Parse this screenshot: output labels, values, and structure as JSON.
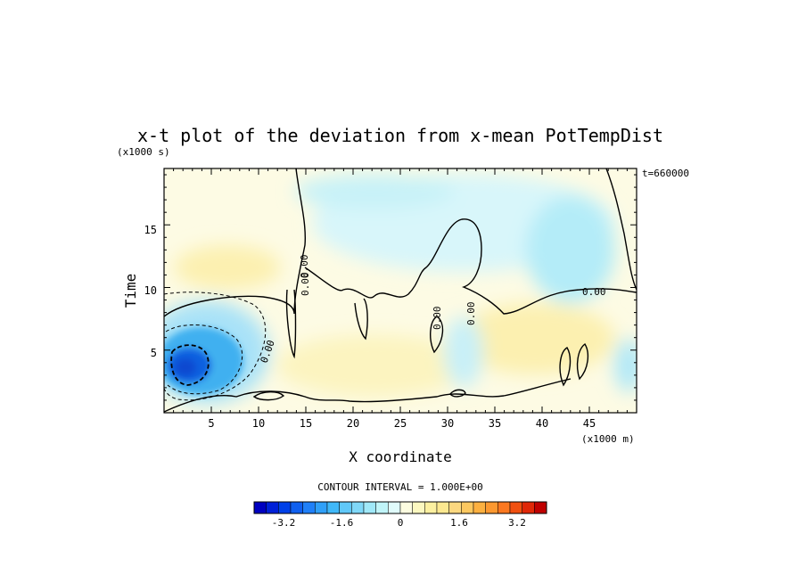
{
  "chart_data": {
    "type": "heatmap",
    "title": "x-t plot of the deviation from x-mean PotTempDist",
    "xlabel": "X coordinate",
    "ylabel": "Time",
    "x_units": "(x1000 m)",
    "y_units": "(x1000 s)",
    "time_stamp": "t=660000",
    "xlim": [
      0,
      50
    ],
    "ylim": [
      0,
      19.5
    ],
    "x_ticks": [
      "5",
      "10",
      "15",
      "20",
      "25",
      "30",
      "35",
      "40",
      "45"
    ],
    "y_ticks": [
      "5",
      "10",
      "15"
    ],
    "contour_interval": "CONTOUR INTERVAL = 1.000E+00",
    "contour_labels": [
      "0.00",
      "0.00",
      "0.00",
      "0.00",
      "0.00",
      "0.00"
    ],
    "colorbar": {
      "range": [
        -4,
        4
      ],
      "ticks": [
        "-3.2",
        "-1.6",
        "0",
        "1.6",
        "3.2"
      ],
      "colors": [
        "#0000c0",
        "#0020d8",
        "#0040e8",
        "#1060f0",
        "#2080f8",
        "#30a0f8",
        "#40b8f8",
        "#60c8f8",
        "#80d8f8",
        "#a0e8f8",
        "#c0f4f8",
        "#e0fcfc",
        "#fcfce0",
        "#fcf8c0",
        "#fcf0a0",
        "#fce890",
        "#fcd880",
        "#fcc860",
        "#fcb040",
        "#fc9830",
        "#fc7820",
        "#f05010",
        "#e02808",
        "#c00000"
      ]
    },
    "features": [
      {
        "name": "cold anomaly core",
        "x": 2.5,
        "y": 4.2,
        "value": -3.4
      },
      {
        "name": "cool band",
        "x": 44,
        "y": 16,
        "value": -0.6
      },
      {
        "name": "warm plume",
        "x": 24,
        "y": 4,
        "value": 0.6
      },
      {
        "name": "warm tongue",
        "x": 38,
        "y": 7,
        "value": 0.9
      },
      {
        "name": "warm patch",
        "x": 6,
        "y": 12,
        "value": 0.4
      }
    ]
  }
}
